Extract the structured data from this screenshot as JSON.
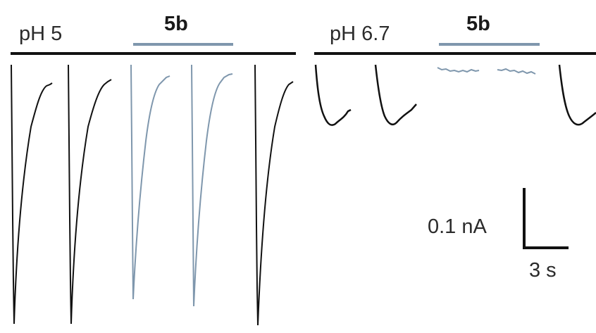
{
  "conditions": {
    "left": {
      "ph_label": "pH 5",
      "compound_label": "5b"
    },
    "right": {
      "ph_label": "pH 6.7",
      "compound_label": "5b"
    }
  },
  "scale_bar": {
    "current_label": "0.1 nA",
    "time_label": "3 s"
  },
  "colors": {
    "control_trace": "#111111",
    "compound_trace": "#7f97ad",
    "condition_bar": "#111111",
    "compound_bar": "#7f97ad",
    "text": "#2b2b2b"
  }
}
